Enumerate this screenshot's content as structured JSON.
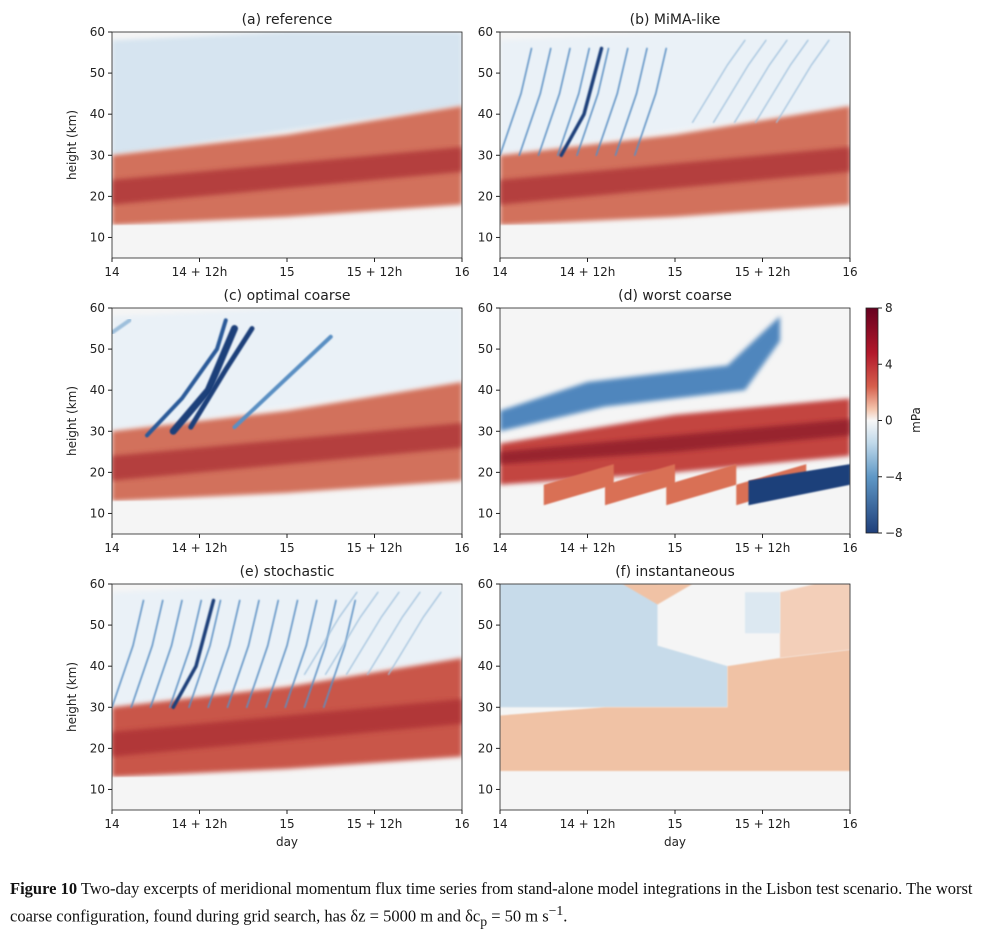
{
  "figure": {
    "caption_label": "Figure 10",
    "caption_text": "Two-day excerpts of meridional momentum flux time series from stand-alone model integrations in the Lisbon test scenario.  The worst coarse configuration, found during grid search, has δz = 5000 m and δc",
    "caption_sub": "p",
    "caption_tail": " = 50 m s",
    "caption_sup": "−1",
    "caption_end": "."
  },
  "chart_data": [
    {
      "type": "heatmap",
      "title": "(a) reference",
      "ylabel": "height (km)",
      "xlabel": "",
      "xticks": [
        "14",
        "14 + 12h",
        "15",
        "15 + 12h",
        "16"
      ],
      "yticks": [
        10,
        20,
        30,
        40,
        50,
        60
      ],
      "xlim": [
        14,
        16
      ],
      "ylim": [
        5,
        60
      ]
    },
    {
      "type": "heatmap",
      "title": "(b) MiMA-like",
      "ylabel": "",
      "xlabel": "",
      "xticks": [
        "14",
        "14 + 12h",
        "15",
        "15 + 12h",
        "16"
      ],
      "yticks": [
        10,
        20,
        30,
        40,
        50,
        60
      ],
      "xlim": [
        14,
        16
      ],
      "ylim": [
        5,
        60
      ]
    },
    {
      "type": "heatmap",
      "title": "(c) optimal coarse",
      "ylabel": "height (km)",
      "xlabel": "",
      "xticks": [
        "14",
        "14 + 12h",
        "15",
        "15 + 12h",
        "16"
      ],
      "yticks": [
        10,
        20,
        30,
        40,
        50,
        60
      ],
      "xlim": [
        14,
        16
      ],
      "ylim": [
        5,
        60
      ]
    },
    {
      "type": "heatmap",
      "title": "(d) worst coarse",
      "ylabel": "",
      "xlabel": "",
      "xticks": [
        "14",
        "14 + 12h",
        "15",
        "15 + 12h",
        "16"
      ],
      "yticks": [
        10,
        20,
        30,
        40,
        50,
        60
      ],
      "xlim": [
        14,
        16
      ],
      "ylim": [
        5,
        60
      ]
    },
    {
      "type": "heatmap",
      "title": "(e) stochastic",
      "ylabel": "height (km)",
      "xlabel": "day",
      "xticks": [
        "14",
        "14 + 12h",
        "15",
        "15 + 12h",
        "16"
      ],
      "yticks": [
        10,
        20,
        30,
        40,
        50,
        60
      ],
      "xlim": [
        14,
        16
      ],
      "ylim": [
        5,
        60
      ]
    },
    {
      "type": "heatmap",
      "title": "(f) instantaneous",
      "ylabel": "",
      "xlabel": "day",
      "xticks": [
        "14",
        "14 + 12h",
        "15",
        "15 + 12h",
        "16"
      ],
      "yticks": [
        10,
        20,
        30,
        40,
        50,
        60
      ],
      "xlim": [
        14,
        16
      ],
      "ylim": [
        5,
        60
      ]
    }
  ],
  "colorbar": {
    "label": "mPa",
    "ticks": [
      8,
      4,
      0,
      -4,
      -8
    ],
    "range": [
      -8,
      8
    ],
    "colormap": "RdBu_r",
    "colors": {
      "min": "#1f3d73",
      "zero": "#f7f7f7",
      "max": "#6b0d1f"
    }
  }
}
